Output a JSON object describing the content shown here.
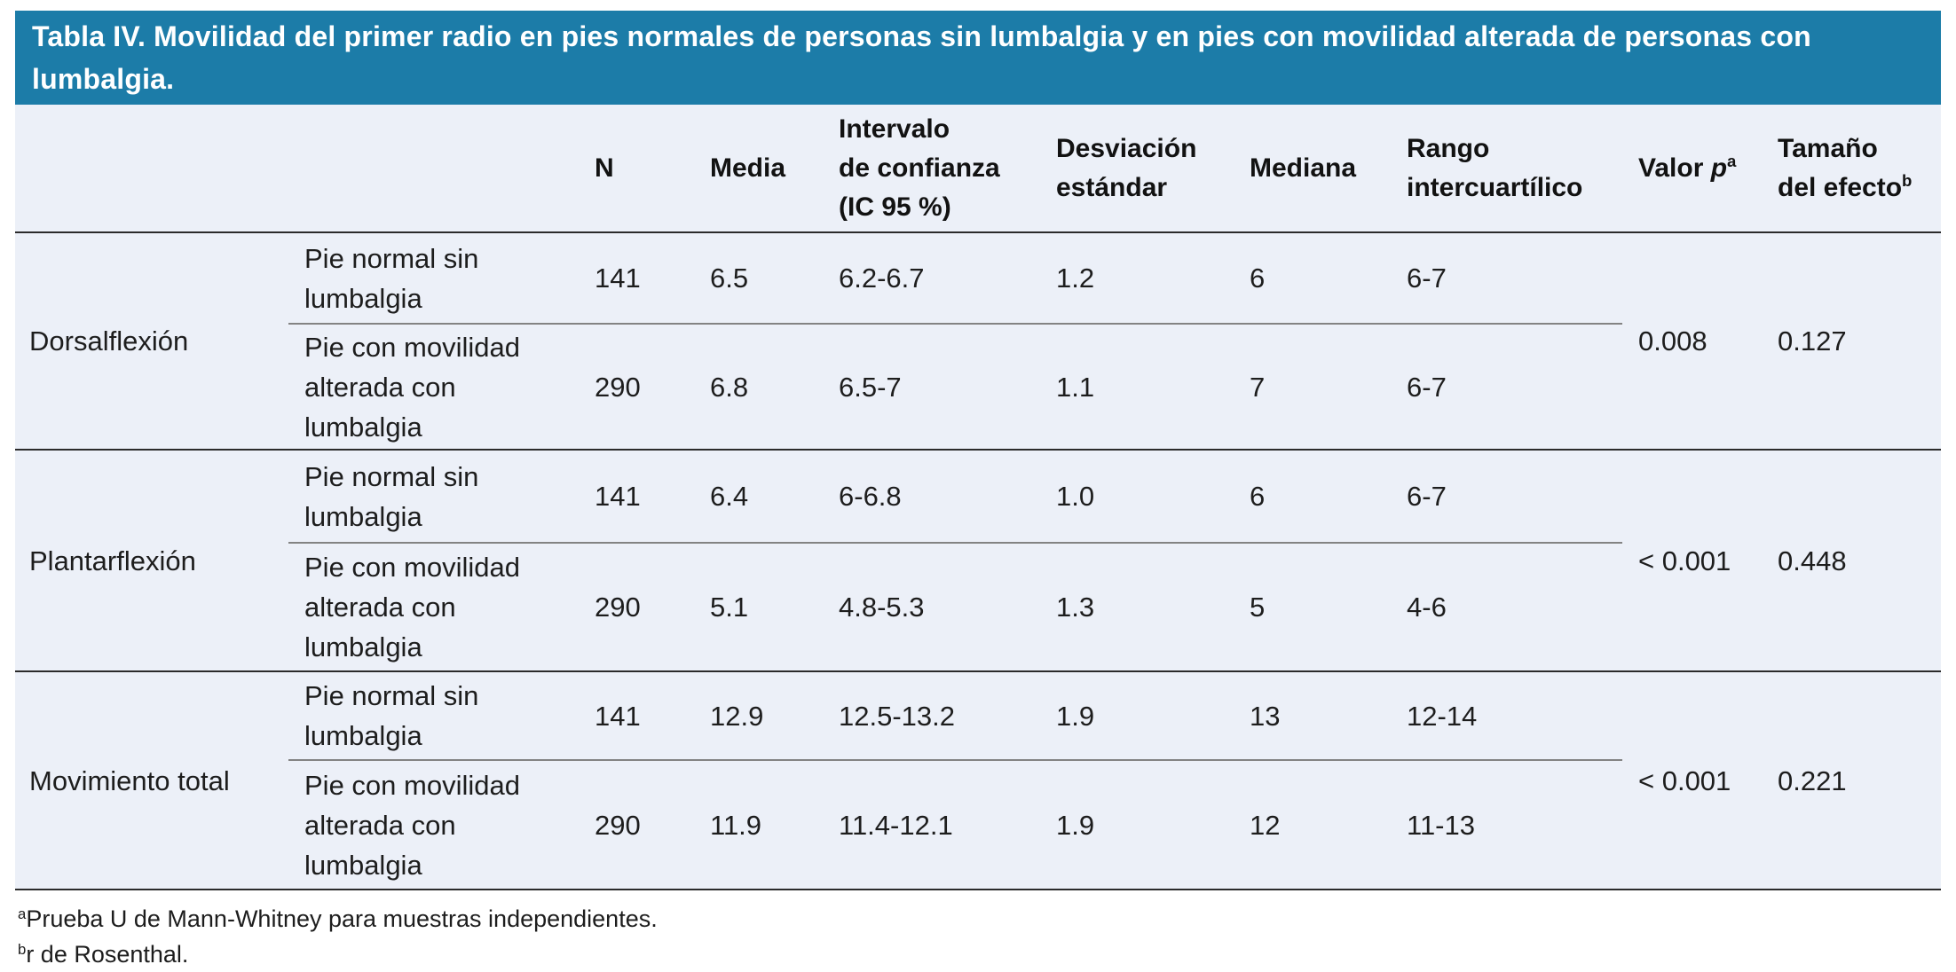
{
  "title": "Tabla IV. Movilidad del primer radio en pies normales de personas sin lumbalgia y en pies con movilidad alterada de personas con lumbalgia.",
  "colors": {
    "title_bar_bg": "#1c7ca8",
    "title_text": "#ffffff",
    "table_bg": "#ecf0f8",
    "rule_dark": "#2b2b2b",
    "rule_light": "#838383"
  },
  "header": {
    "n": "N",
    "media": "Media",
    "ic": [
      "Intervalo",
      "de confianza",
      "(IC 95 %)"
    ],
    "de": [
      "Desviación",
      "estándar"
    ],
    "mediana": "Mediana",
    "rango": [
      "Rango",
      "intercuartílico"
    ],
    "valor": {
      "pre": "Valor ",
      "p": "p",
      "sup": "a"
    },
    "tamano": {
      "line1": "Tamaño",
      "line2": "del efecto",
      "sup": "b"
    }
  },
  "groups": [
    {
      "label": "Dorsalflexión",
      "p_value": "0.008",
      "effect_size": "0.127",
      "rows": [
        {
          "condition": "Pie normal sin lumbalgia",
          "n": "141",
          "media": "6.5",
          "ic": "6.2-6.7",
          "de": "1.2",
          "mediana": "6",
          "rango": "6-7"
        },
        {
          "condition": "Pie con movilidad alterada con lumbalgia",
          "n": "290",
          "media": "6.8",
          "ic": "6.5-7",
          "de": "1.1",
          "mediana": "7",
          "rango": "6-7"
        }
      ]
    },
    {
      "label": "Plantarflexión",
      "p_value": "< 0.001",
      "effect_size": "0.448",
      "rows": [
        {
          "condition": "Pie normal sin lumbalgia",
          "n": "141",
          "media": "6.4",
          "ic": "6-6.8",
          "de": "1.0",
          "mediana": "6",
          "rango": "6-7"
        },
        {
          "condition": "Pie con movilidad alterada con lumbalgia",
          "n": "290",
          "media": "5.1",
          "ic": "4.8-5.3",
          "de": "1.3",
          "mediana": "5",
          "rango": "4-6"
        }
      ]
    },
    {
      "label": "Movimiento total",
      "p_value": "< 0.001",
      "effect_size": "0.221",
      "rows": [
        {
          "condition": "Pie normal sin lumbalgia",
          "n": "141",
          "media": "12.9",
          "ic": "12.5-13.2",
          "de": "1.9",
          "mediana": "13",
          "rango": "12-14"
        },
        {
          "condition": "Pie con movilidad alterada con lumbalgia",
          "n": "290",
          "media": "11.9",
          "ic": "11.4-12.1",
          "de": "1.9",
          "mediana": "12",
          "rango": "11-13"
        }
      ]
    }
  ],
  "footnotes": [
    {
      "sup": "a",
      "text": "Prueba U de Mann-Whitney para muestras independientes."
    },
    {
      "sup": "b",
      "text": "r de Rosenthal."
    }
  ]
}
